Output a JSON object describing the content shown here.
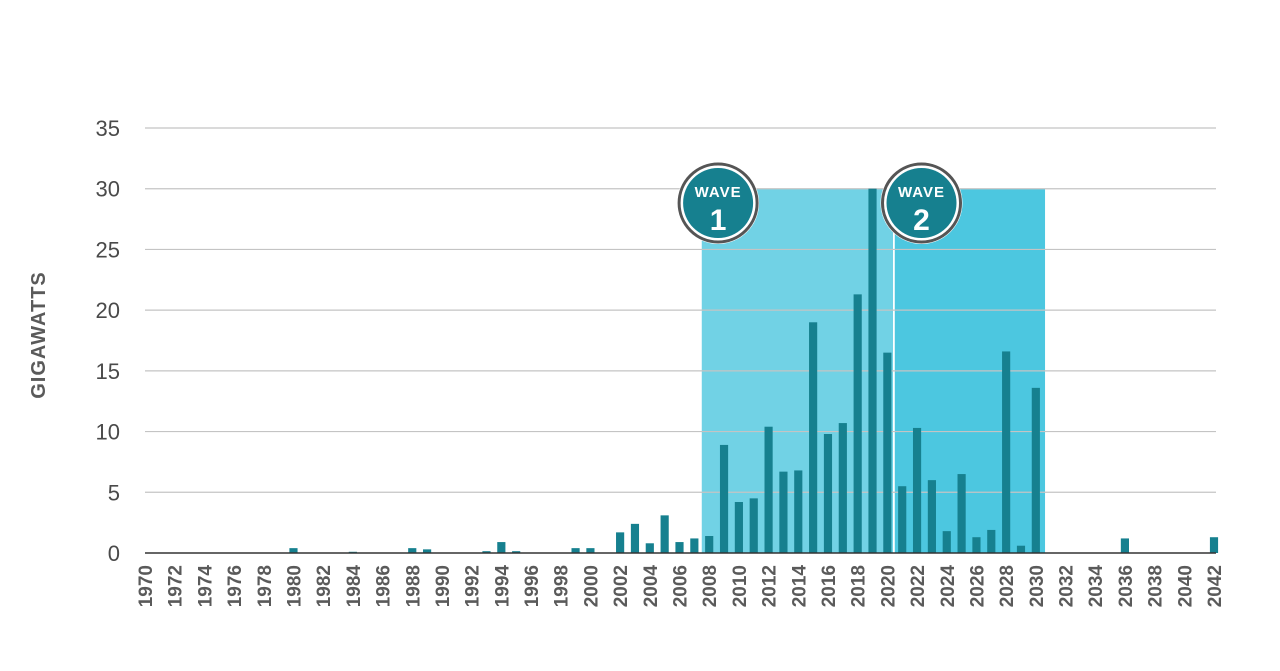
{
  "chart_data": {
    "type": "bar",
    "ylabel": "GIGAWATTS",
    "xlabel": "",
    "title": "",
    "ylim": [
      0,
      35
    ],
    "yticks": [
      "0",
      "5",
      "10",
      "15",
      "20",
      "25",
      "30",
      "35"
    ],
    "x_range": [
      1970,
      2042
    ],
    "xticks": [
      "1970",
      "1972",
      "1974",
      "1976",
      "1978",
      "1980",
      "1982",
      "1984",
      "1986",
      "1988",
      "1990",
      "1992",
      "1994",
      "1996",
      "1998",
      "2000",
      "2002",
      "2004",
      "2006",
      "2008",
      "2010",
      "2012",
      "2014",
      "2016",
      "2018",
      "2020",
      "2022",
      "2024",
      "2026",
      "2028",
      "2030",
      "2032",
      "2034",
      "2036",
      "2038",
      "2040",
      "2042"
    ],
    "grid": true,
    "bar_color": "#16808f",
    "series": [
      {
        "x": [
          1980,
          1984,
          1988,
          1989,
          1993,
          1994,
          1995,
          1999,
          2000,
          2002,
          2003,
          2004,
          2005,
          2006,
          2007,
          2008,
          2009,
          2010,
          2011,
          2012,
          2013,
          2014,
          2015,
          2016,
          2017,
          2018,
          2019,
          2020,
          2021,
          2022,
          2023,
          2024,
          2025,
          2026,
          2027,
          2028,
          2029,
          2030,
          2036,
          2042
        ],
        "values": [
          0.4,
          0.1,
          0.4,
          0.3,
          0.15,
          0.9,
          0.15,
          0.4,
          0.4,
          1.7,
          2.4,
          0.8,
          3.1,
          0.9,
          1.2,
          1.4,
          8.9,
          4.2,
          4.5,
          10.4,
          6.7,
          6.8,
          19.0,
          9.8,
          10.7,
          21.3,
          30.0,
          16.5,
          5.5,
          10.3,
          6.0,
          1.8,
          6.5,
          1.3,
          1.9,
          16.6,
          0.6,
          13.6,
          1.2,
          1.3
        ]
      }
    ],
    "bands": [
      {
        "label_word": "WAVE",
        "label_num": "1",
        "x_start": 2008,
        "x_end": 2020,
        "height": 30,
        "color": "#71d2e5"
      },
      {
        "label_word": "WAVE",
        "label_num": "2",
        "x_start": 2021,
        "x_end": 2030,
        "height": 30,
        "color": "#4cc7e0"
      }
    ]
  }
}
